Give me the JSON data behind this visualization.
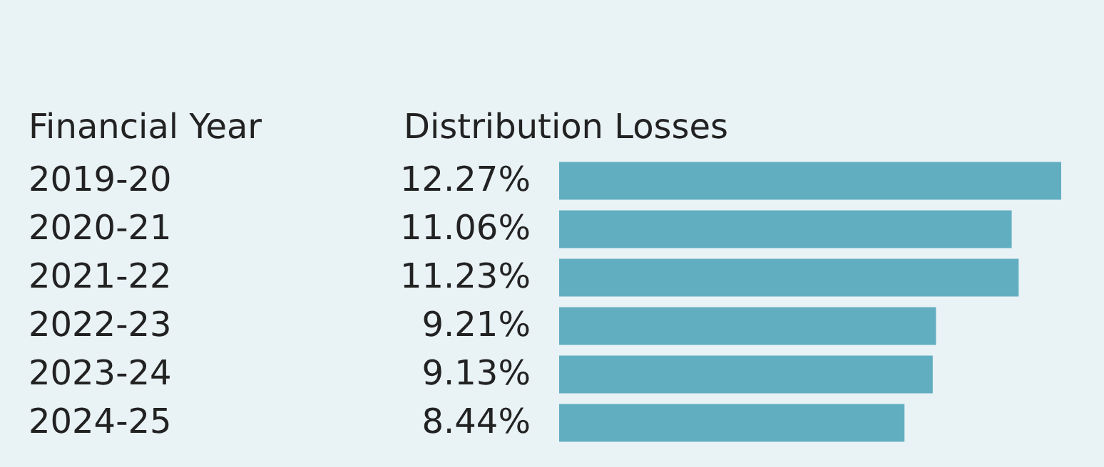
{
  "chart_data": {
    "type": "bar",
    "orientation": "horizontal",
    "ylabel": "Financial Year",
    "xlabel": "Distribution Losses",
    "categories": [
      "2019-20",
      "2020-21",
      "2021-22",
      "2022-23",
      "2023-24",
      "2024-25"
    ],
    "values": [
      12.27,
      11.06,
      11.23,
      9.21,
      9.13,
      8.44
    ],
    "value_labels": [
      "12.27%",
      "11.06%",
      "11.23%",
      "9.21%",
      "9.13%",
      "8.44%"
    ],
    "color": "#62aec1",
    "tick_labels": "y"
  }
}
